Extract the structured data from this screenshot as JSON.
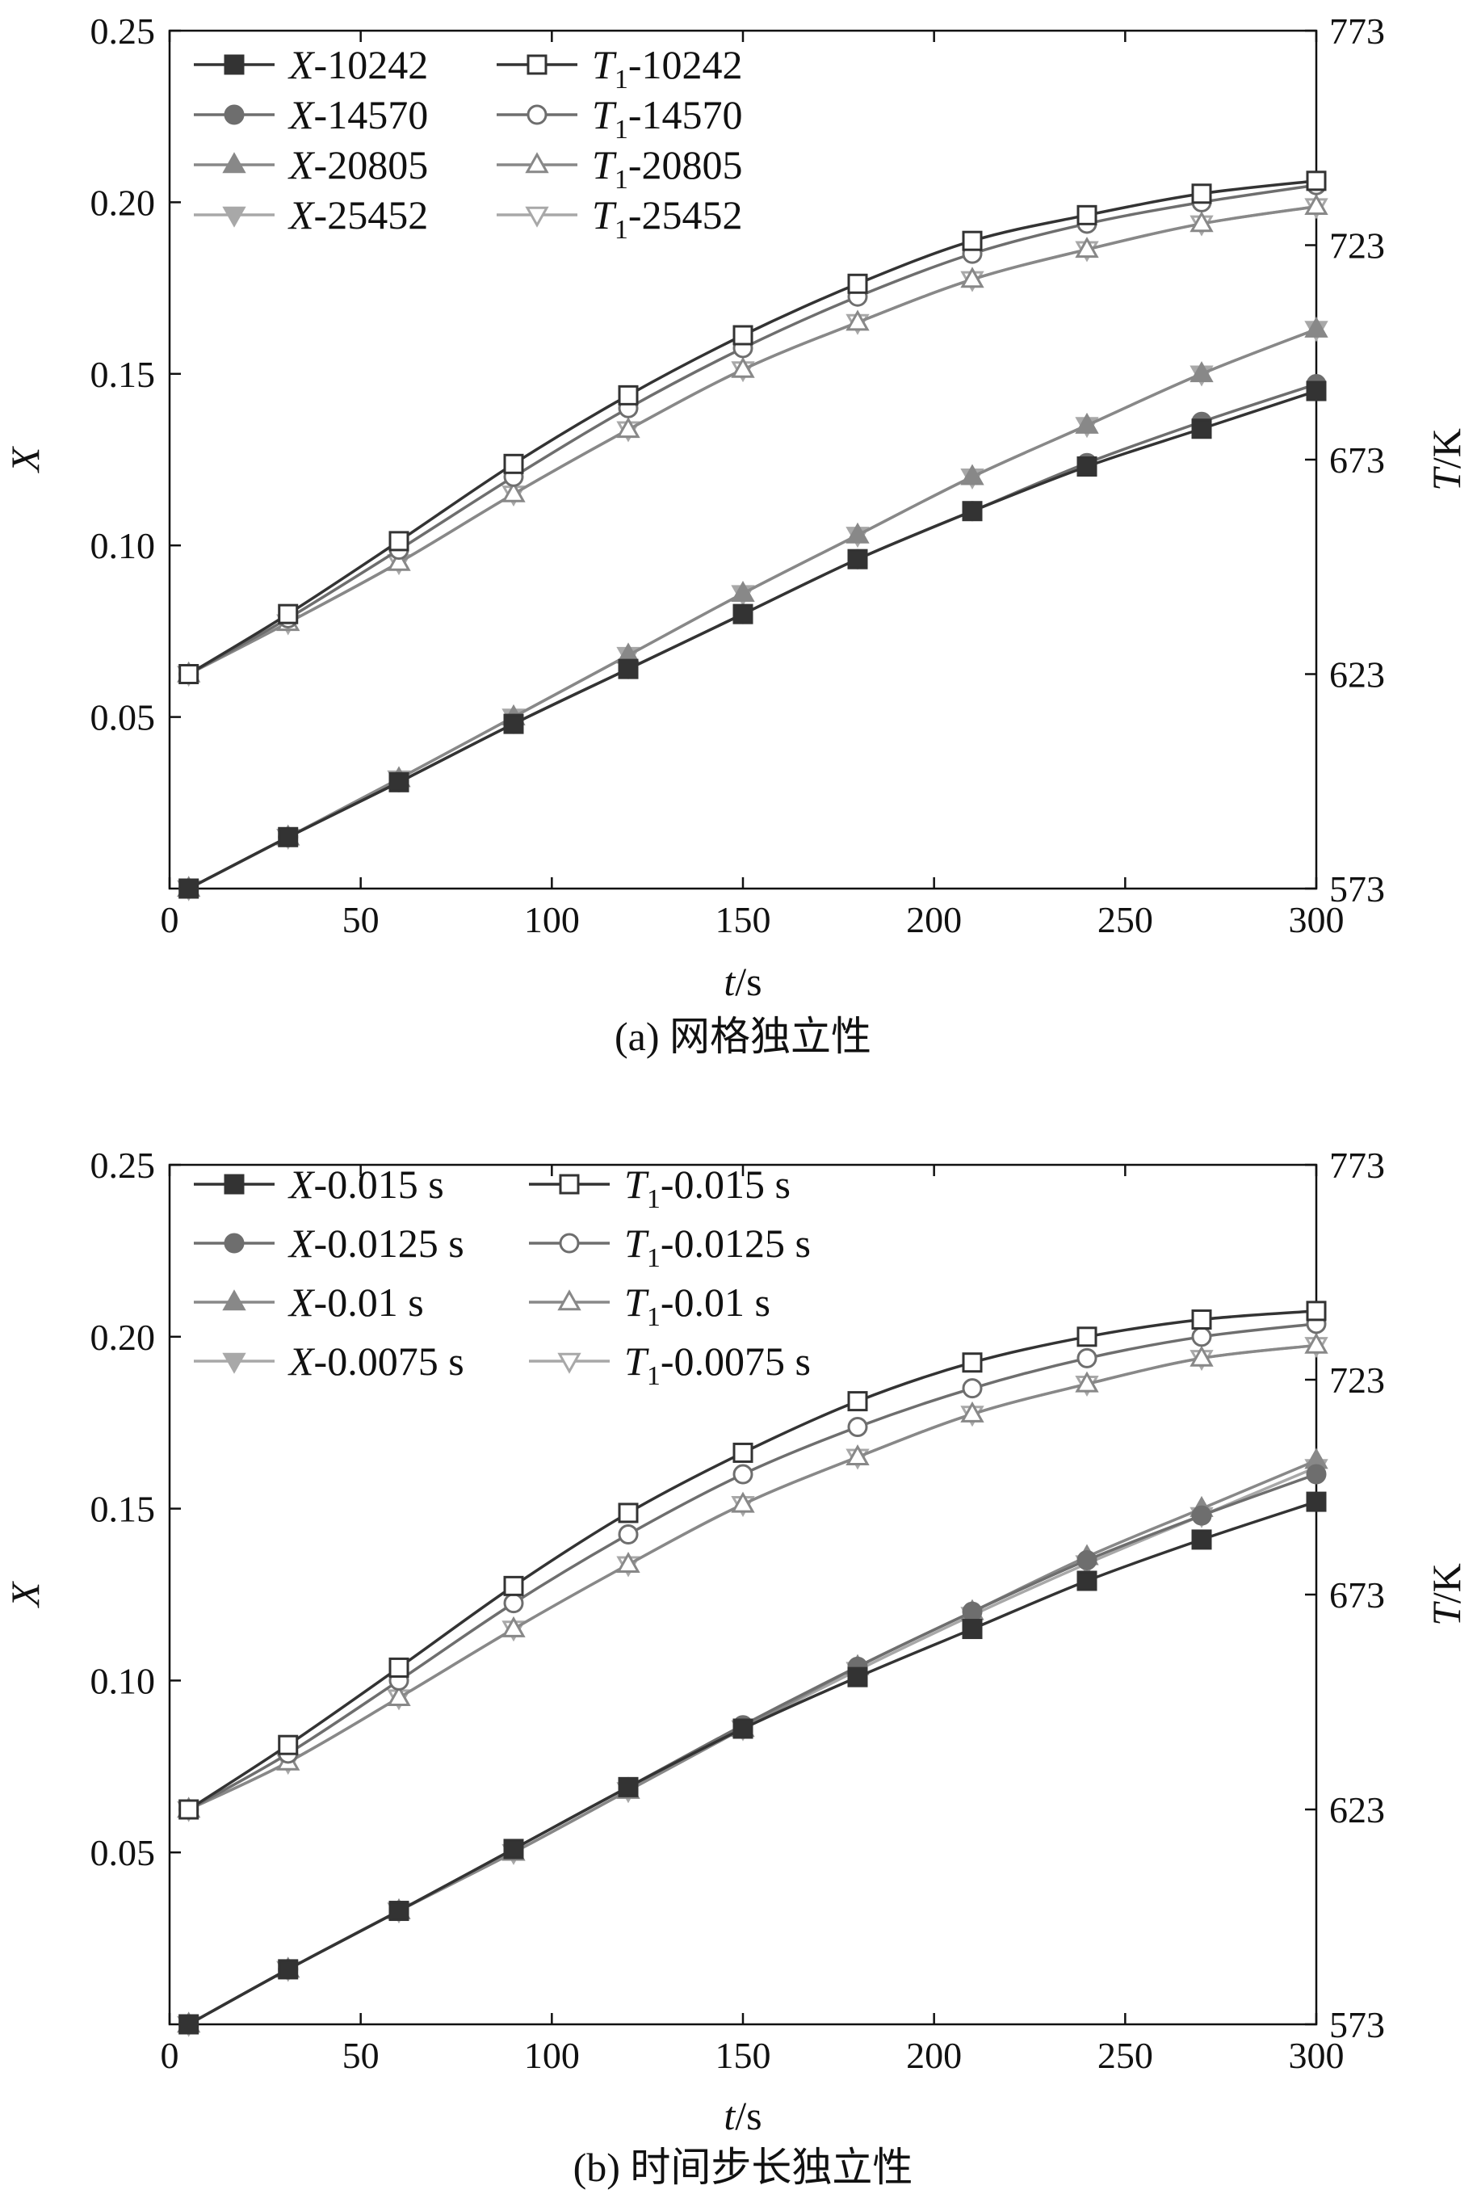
{
  "chart_data": [
    {
      "type": "line",
      "caption": "(a) 网格独立性",
      "xlabel_main": "t",
      "xlabel_unit": "/s",
      "ylabel_left": "X",
      "ylabel_right_main": "T",
      "ylabel_right_unit": "/K",
      "xlim": [
        0,
        300
      ],
      "xticks": [
        0,
        50,
        100,
        150,
        200,
        250,
        300
      ],
      "ylim_left": [
        0,
        0.25
      ],
      "yticks_left": [
        "0.05",
        "0.10",
        "0.15",
        "0.20",
        "0.25"
      ],
      "ylim_right": [
        573,
        773
      ],
      "yticks_right": [
        "573",
        "623",
        "673",
        "723",
        "773"
      ],
      "legend_position": "top-left",
      "x": [
        5,
        31,
        60,
        90,
        120,
        150,
        180,
        210,
        240,
        270,
        300
      ],
      "series": [
        {
          "name_var": "X",
          "name_sub": "",
          "name_suffix": "-10242",
          "axis": "left",
          "marker": "square",
          "filled": true,
          "color": "#333333",
          "values": [
            0.0,
            0.015,
            0.031,
            0.048,
            0.064,
            0.08,
            0.096,
            0.11,
            0.123,
            0.134,
            0.145
          ]
        },
        {
          "name_var": "T",
          "name_sub": "1",
          "name_suffix": "-10242",
          "axis": "right",
          "marker": "square",
          "filled": false,
          "color": "#333333",
          "values": [
            623,
            637,
            654,
            672,
            688,
            702,
            714,
            724,
            730,
            735,
            738
          ]
        },
        {
          "name_var": "X",
          "name_sub": "",
          "name_suffix": "-14570",
          "axis": "left",
          "marker": "circle",
          "filled": true,
          "color": "#6e6e6e",
          "values": [
            0.0,
            0.015,
            0.031,
            0.048,
            0.064,
            0.08,
            0.096,
            0.11,
            0.124,
            0.136,
            0.147
          ]
        },
        {
          "name_var": "T",
          "name_sub": "1",
          "name_suffix": "-14570",
          "axis": "right",
          "marker": "circle",
          "filled": false,
          "color": "#6e6e6e",
          "values": [
            623,
            636,
            652,
            669,
            685,
            699,
            711,
            721,
            728,
            733,
            737
          ]
        },
        {
          "name_var": "X",
          "name_sub": "",
          "name_suffix": "-20805",
          "axis": "left",
          "marker": "triangle-up",
          "filled": true,
          "color": "#888888",
          "values": [
            0.0,
            0.015,
            0.032,
            0.05,
            0.068,
            0.086,
            0.103,
            0.12,
            0.135,
            0.15,
            0.163
          ]
        },
        {
          "name_var": "T",
          "name_sub": "1",
          "name_suffix": "-20805",
          "axis": "right",
          "marker": "triangle-up",
          "filled": false,
          "color": "#888888",
          "values": [
            623,
            635,
            649,
            665,
            680,
            694,
            705,
            715,
            722,
            728,
            732
          ]
        },
        {
          "name_var": "X",
          "name_sub": "",
          "name_suffix": "-25452",
          "axis": "left",
          "marker": "triangle-down",
          "filled": true,
          "color": "#a8a8a8",
          "values": [
            0.0,
            0.015,
            0.032,
            0.05,
            0.068,
            0.086,
            0.103,
            0.12,
            0.135,
            0.15,
            0.163
          ]
        },
        {
          "name_var": "T",
          "name_sub": "1",
          "name_suffix": "-25452",
          "axis": "right",
          "marker": "triangle-down",
          "filled": false,
          "color": "#a8a8a8",
          "values": [
            623,
            635,
            649,
            665,
            680,
            694,
            705,
            715,
            722,
            728,
            732
          ]
        }
      ]
    },
    {
      "type": "line",
      "caption": "(b) 时间步长独立性",
      "xlabel_main": "t",
      "xlabel_unit": "/s",
      "ylabel_left": "X",
      "ylabel_right_main": "T",
      "ylabel_right_unit": "/K",
      "xlim": [
        0,
        300
      ],
      "xticks": [
        0,
        50,
        100,
        150,
        200,
        250,
        300
      ],
      "ylim_left": [
        0,
        0.25
      ],
      "yticks_left": [
        "0.05",
        "0.10",
        "0.15",
        "0.20",
        "0.25"
      ],
      "ylim_right": [
        573,
        773
      ],
      "yticks_right": [
        "573",
        "623",
        "673",
        "723",
        "773"
      ],
      "legend_position": "top-left",
      "x": [
        5,
        31,
        60,
        90,
        120,
        150,
        180,
        210,
        240,
        270,
        300
      ],
      "series": [
        {
          "name_var": "X",
          "name_sub": "",
          "name_suffix": "-0.015 s",
          "axis": "left",
          "marker": "square",
          "filled": true,
          "color": "#333333",
          "values": [
            0.0,
            0.016,
            0.033,
            0.051,
            0.069,
            0.086,
            0.101,
            0.115,
            0.129,
            0.141,
            0.152
          ]
        },
        {
          "name_var": "T",
          "name_sub": "1",
          "name_suffix": "-0.015 s",
          "axis": "right",
          "marker": "square",
          "filled": false,
          "color": "#333333",
          "values": [
            623,
            638,
            656,
            675,
            692,
            706,
            718,
            727,
            733,
            737,
            739
          ]
        },
        {
          "name_var": "X",
          "name_sub": "",
          "name_suffix": "-0.0125 s",
          "axis": "left",
          "marker": "circle",
          "filled": true,
          "color": "#6e6e6e",
          "values": [
            0.0,
            0.016,
            0.033,
            0.051,
            0.069,
            0.087,
            0.104,
            0.12,
            0.135,
            0.148,
            0.16
          ]
        },
        {
          "name_var": "T",
          "name_sub": "1",
          "name_suffix": "-0.0125 s",
          "axis": "right",
          "marker": "circle",
          "filled": false,
          "color": "#6e6e6e",
          "values": [
            623,
            636,
            653,
            671,
            687,
            701,
            712,
            721,
            728,
            733,
            736
          ]
        },
        {
          "name_var": "X",
          "name_sub": "",
          "name_suffix": "-0.01 s",
          "axis": "left",
          "marker": "triangle-up",
          "filled": true,
          "color": "#888888",
          "values": [
            0.0,
            0.016,
            0.033,
            0.05,
            0.068,
            0.086,
            0.104,
            0.12,
            0.136,
            0.15,
            0.164
          ]
        },
        {
          "name_var": "T",
          "name_sub": "1",
          "name_suffix": "-0.01 s",
          "axis": "right",
          "marker": "triangle-up",
          "filled": false,
          "color": "#888888",
          "values": [
            623,
            634,
            649,
            665,
            680,
            694,
            705,
            715,
            722,
            728,
            731
          ]
        },
        {
          "name_var": "X",
          "name_sub": "",
          "name_suffix": "-0.0075 s",
          "axis": "left",
          "marker": "triangle-down",
          "filled": true,
          "color": "#a8a8a8",
          "values": [
            0.0,
            0.016,
            0.033,
            0.05,
            0.068,
            0.086,
            0.103,
            0.119,
            0.134,
            0.148,
            0.162
          ]
        },
        {
          "name_var": "T",
          "name_sub": "1",
          "name_suffix": "-0.0075 s",
          "axis": "right",
          "marker": "triangle-down",
          "filled": false,
          "color": "#a8a8a8",
          "values": [
            623,
            634,
            649,
            665,
            680,
            694,
            705,
            715,
            722,
            728,
            731
          ]
        }
      ]
    }
  ]
}
